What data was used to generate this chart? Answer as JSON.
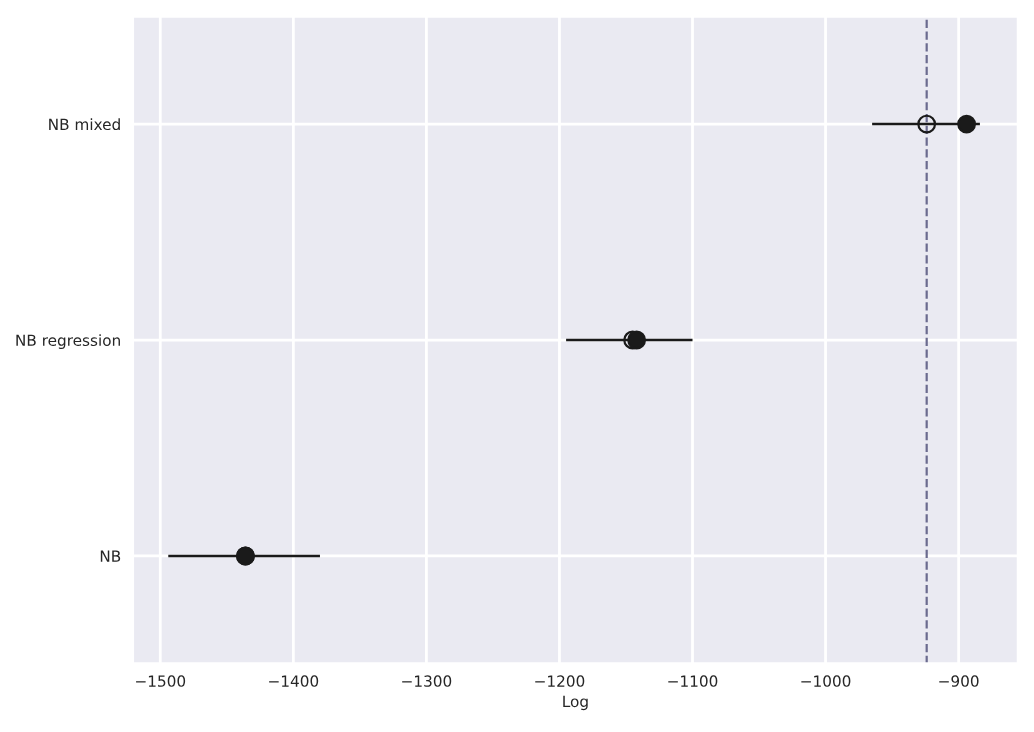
{
  "chart_data": {
    "type": "scatter",
    "orientation": "horizontal",
    "xlabel": "Log",
    "categories": [
      "NB mixed",
      "NB regression",
      "NB"
    ],
    "series": [
      {
        "color": "#1a1a1a",
        "marker": "circle",
        "values": [
          -924,
          -1145,
          -1436
        ],
        "errors": [
          [
            -965,
            -884
          ],
          [
            -1195,
            -1100
          ],
          [
            -1494,
            -1380
          ]
        ]
      },
      {
        "color": "#1a1a1a",
        "marker": "circle",
        "values": [
          -894,
          -1142,
          -1436
        ]
      }
    ],
    "xlim": [
      -1521,
      -855
    ],
    "xticks": [
      {
        "value": -1500,
        "label": "−1500"
      },
      {
        "value": -1400,
        "label": "−1400"
      },
      {
        "value": -1300,
        "label": "−1300"
      },
      {
        "value": -1200,
        "label": "−1200"
      },
      {
        "value": -1100,
        "label": "−1100"
      },
      {
        "value": -1000,
        "label": "−1000"
      },
      {
        "value": -900,
        "label": "−900"
      }
    ],
    "ref_lines": [
      {
        "axis": "x",
        "value": -924,
        "color": "#6b6b8f",
        "line_style": "dashed"
      }
    ],
    "grid": true
  }
}
